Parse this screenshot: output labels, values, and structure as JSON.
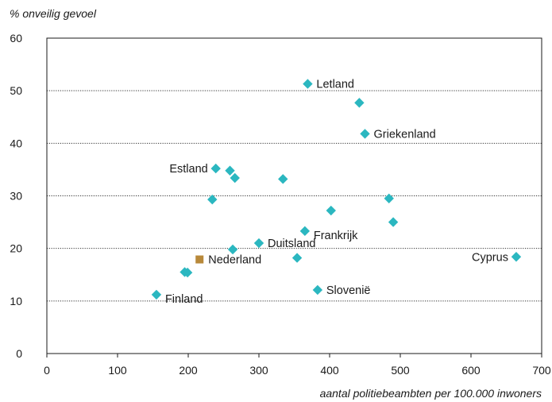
{
  "chart_data": {
    "type": "scatter",
    "xlabel": "aantal politiebeambten per 100.000 inwoners",
    "ylabel": "% onveilig gevoel",
    "xlim": [
      0,
      700
    ],
    "ylim": [
      0,
      60
    ],
    "x_ticks": [
      "0",
      "100",
      "200",
      "300",
      "400",
      "500",
      "600",
      "700"
    ],
    "y_ticks": [
      "0",
      "10",
      "20",
      "30",
      "40",
      "50",
      "60"
    ],
    "grid": "horizontal dotted",
    "colors": {
      "point": "#2bb7c0",
      "highlight": "#b8893a"
    },
    "points": [
      {
        "x": 155,
        "y": 11.2,
        "label": "Finland",
        "pos": "right-below"
      },
      {
        "x": 195,
        "y": 15.5,
        "label": ""
      },
      {
        "x": 199,
        "y": 15.4,
        "label": ""
      },
      {
        "x": 216,
        "y": 17.9,
        "label": "Nederland",
        "pos": "right",
        "highlight": true
      },
      {
        "x": 234,
        "y": 29.3,
        "label": ""
      },
      {
        "x": 239,
        "y": 35.2,
        "label": "Estland",
        "pos": "left"
      },
      {
        "x": 259,
        "y": 34.8,
        "label": ""
      },
      {
        "x": 263,
        "y": 19.8,
        "label": ""
      },
      {
        "x": 266,
        "y": 33.4,
        "label": ""
      },
      {
        "x": 300,
        "y": 21.0,
        "label": "Duitsland",
        "pos": "right"
      },
      {
        "x": 334,
        "y": 33.2,
        "label": ""
      },
      {
        "x": 354,
        "y": 18.2,
        "label": ""
      },
      {
        "x": 365,
        "y": 23.3,
        "label": "Frankrijk",
        "pos": "right-below"
      },
      {
        "x": 369,
        "y": 51.3,
        "label": "Letland",
        "pos": "right"
      },
      {
        "x": 383,
        "y": 12.1,
        "label": "Slovenië",
        "pos": "right"
      },
      {
        "x": 402,
        "y": 27.2,
        "label": ""
      },
      {
        "x": 442,
        "y": 47.7,
        "label": ""
      },
      {
        "x": 450,
        "y": 41.8,
        "label": "Griekenland",
        "pos": "right"
      },
      {
        "x": 484,
        "y": 29.5,
        "label": ""
      },
      {
        "x": 490,
        "y": 25.0,
        "label": ""
      },
      {
        "x": 664,
        "y": 18.4,
        "label": "Cyprus",
        "pos": "left"
      }
    ]
  }
}
